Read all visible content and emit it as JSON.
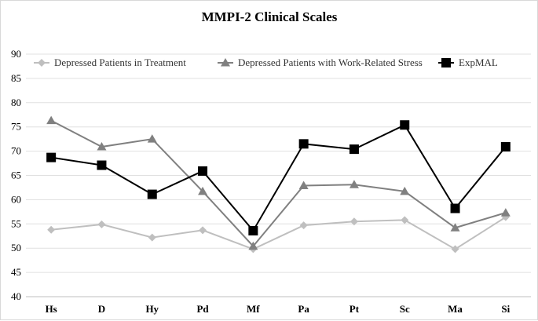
{
  "chart_data": {
    "type": "line",
    "title": "MMPI-2 Clinical Scales",
    "xlabel": "",
    "ylabel": "",
    "ylim": [
      40,
      90
    ],
    "yticks": [
      40,
      45,
      50,
      55,
      60,
      65,
      70,
      75,
      80,
      85,
      90
    ],
    "grid": true,
    "legend_position": "top",
    "categories": [
      "Hs",
      "D",
      "Hy",
      "Pd",
      "Mf",
      "Pa",
      "Pt",
      "Sc",
      "Ma",
      "Si"
    ],
    "series": [
      {
        "name": "Depressed Patients in Treatment",
        "marker": "diamond",
        "color": "#bfbfbf",
        "values": [
          53.8,
          54.9,
          52.2,
          53.7,
          49.8,
          54.7,
          55.5,
          55.8,
          49.8,
          56.4
        ]
      },
      {
        "name": "Depressed Patients with Work-Related Stress",
        "marker": "triangle",
        "color": "#808080",
        "values": [
          76.3,
          70.9,
          72.5,
          61.7,
          50.4,
          62.9,
          63.1,
          61.7,
          54.2,
          57.3
        ]
      },
      {
        "name": "ExpMAL",
        "marker": "square",
        "color": "#000000",
        "values": [
          68.7,
          67.1,
          61.1,
          65.9,
          53.6,
          71.5,
          70.4,
          75.4,
          58.2,
          70.9
        ]
      }
    ]
  }
}
